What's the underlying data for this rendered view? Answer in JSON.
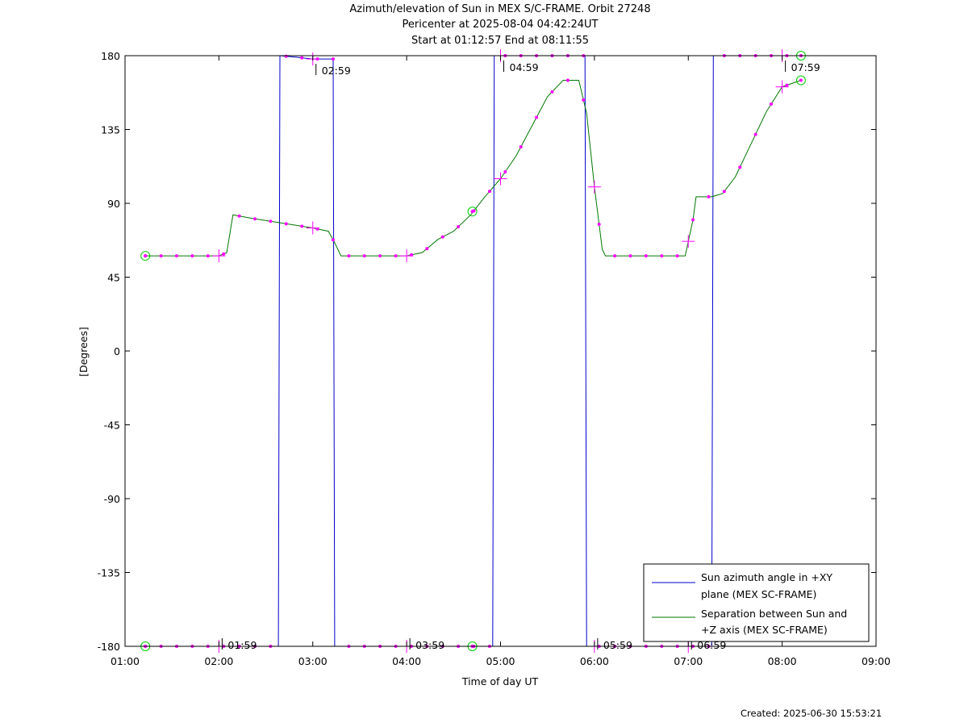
{
  "header": {
    "title_line1": "Azimuth/elevation of Sun in MEX S/C-FRAME.  Orbit 27248",
    "title_line2": "Pericenter at 2025-08-04 04:42:24UT",
    "title_line3": "Start at 01:12:57 End at 08:11:55"
  },
  "footer": {
    "created": "Created: 2025-06-30 15:53:21"
  },
  "chart_data": {
    "type": "line",
    "xlabel": "Time of day UT",
    "ylabel": "[Degrees]",
    "xlim": [
      "01:00",
      "09:00"
    ],
    "ylim": [
      -180,
      180
    ],
    "x_ticks": [
      "01:00",
      "02:00",
      "03:00",
      "04:00",
      "05:00",
      "06:00",
      "07:00",
      "08:00",
      "09:00"
    ],
    "y_ticks": [
      180,
      135,
      90,
      45,
      0,
      -45,
      -90,
      -135,
      -180
    ],
    "grid": false,
    "legend_position": "bottom-right",
    "hour_marker_labels": [
      "01:59",
      "02:59",
      "03:59",
      "04:59",
      "05:59",
      "06:59",
      "07:59"
    ],
    "series": [
      {
        "name": "Sun azimuth angle in +XY plane (MEX SC-FRAME)",
        "legend_line1": "Sun azimuth angle in +XY",
        "legend_line2": "plane (MEX SC-FRAME)",
        "color": "#0000cc",
        "points": [
          [
            "01:13",
            -180
          ],
          [
            "02:38",
            -180
          ],
          [
            "02:39",
            180
          ],
          [
            "02:50",
            179
          ],
          [
            "03:00",
            178
          ],
          [
            "03:13",
            178
          ],
          [
            "03:14",
            -180
          ],
          [
            "04:55",
            -180
          ],
          [
            "04:56",
            180
          ],
          [
            "05:54",
            180
          ],
          [
            "05:55",
            -180
          ],
          [
            "07:15",
            -180
          ],
          [
            "07:16",
            180
          ],
          [
            "08:12",
            180
          ]
        ]
      },
      {
        "name": "Separation between Sun and +Z axis (MEX SC-FRAME)",
        "legend_line1": "Separation between Sun and",
        "legend_line2": "+Z axis (MEX SC-FRAME)",
        "color": "#007700",
        "points": [
          [
            "01:13",
            58
          ],
          [
            "02:00",
            58
          ],
          [
            "02:05",
            60
          ],
          [
            "02:09",
            83
          ],
          [
            "02:20",
            81
          ],
          [
            "02:40",
            78
          ],
          [
            "03:00",
            75
          ],
          [
            "03:10",
            73
          ],
          [
            "03:14",
            66
          ],
          [
            "03:18",
            58
          ],
          [
            "04:00",
            58
          ],
          [
            "04:10",
            60
          ],
          [
            "04:20",
            68
          ],
          [
            "04:30",
            73
          ],
          [
            "04:41",
            83
          ],
          [
            "04:50",
            94
          ],
          [
            "05:00",
            105
          ],
          [
            "05:10",
            119
          ],
          [
            "05:20",
            137
          ],
          [
            "05:30",
            155
          ],
          [
            "05:40",
            165
          ],
          [
            "05:50",
            165
          ],
          [
            "05:55",
            145
          ],
          [
            "06:00",
            100
          ],
          [
            "06:05",
            62
          ],
          [
            "06:07",
            58
          ],
          [
            "06:58",
            58
          ],
          [
            "07:03",
            80
          ],
          [
            "07:05",
            94
          ],
          [
            "07:15",
            94
          ],
          [
            "07:22",
            96
          ],
          [
            "07:30",
            106
          ],
          [
            "07:40",
            126
          ],
          [
            "07:50",
            146
          ],
          [
            "08:00",
            161
          ],
          [
            "08:12",
            165
          ]
        ]
      }
    ],
    "hour_marker_points": [
      [
        "02:00",
        -180
      ],
      [
        "03:00",
        -180
      ],
      [
        "04:00",
        -180
      ],
      [
        "05:00",
        -180
      ],
      [
        "06:00",
        -180
      ],
      [
        "07:00",
        -180
      ],
      [
        "08:00",
        -180
      ]
    ],
    "circle_markers": [
      [
        "01:13",
        -180
      ],
      [
        "01:13",
        58
      ],
      [
        "04:42",
        -180
      ],
      [
        "04:42",
        85
      ],
      [
        "08:12",
        180
      ],
      [
        "08:12",
        165
      ]
    ]
  }
}
